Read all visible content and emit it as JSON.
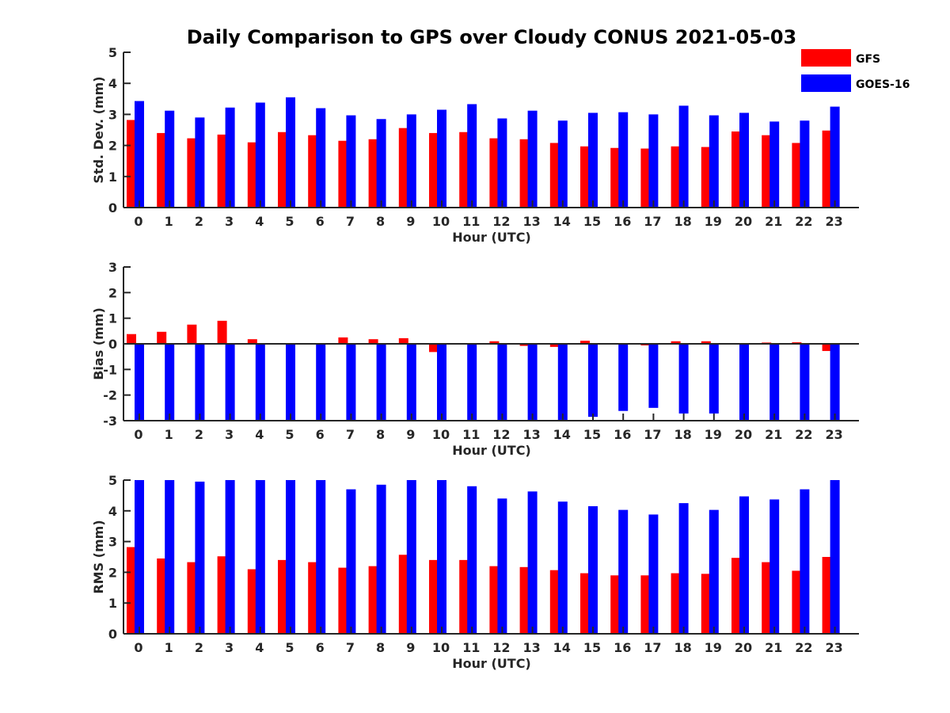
{
  "title": "Daily Comparison to GPS over Cloudy CONUS 2021-05-03",
  "colors": {
    "GFS": "#ff0000",
    "GOES-16": "#0000ff"
  },
  "legend": [
    {
      "label": "GFS",
      "color": "#ff0000"
    },
    {
      "label": "GOES-16",
      "color": "#0000ff"
    }
  ],
  "chart_data": [
    {
      "type": "bar",
      "xlabel": "Hour (UTC)",
      "ylabel": "Std. Dev. (mm)",
      "ylim": [
        0,
        5
      ],
      "yticks": [
        "0",
        "1",
        "2",
        "3",
        "4",
        "5"
      ],
      "categories": [
        "0",
        "1",
        "2",
        "3",
        "4",
        "5",
        "6",
        "7",
        "8",
        "9",
        "10",
        "11",
        "12",
        "13",
        "14",
        "15",
        "16",
        "17",
        "18",
        "19",
        "20",
        "21",
        "22",
        "23"
      ],
      "legend_position": "top-right",
      "series": [
        {
          "name": "GFS",
          "values": [
            2.82,
            2.4,
            2.23,
            2.35,
            2.1,
            2.43,
            2.33,
            2.15,
            2.2,
            2.56,
            2.4,
            2.43,
            2.23,
            2.2,
            2.08,
            1.97,
            1.92,
            1.9,
            1.97,
            1.95,
            2.45,
            2.33,
            2.08,
            2.48
          ]
        },
        {
          "name": "GOES-16",
          "values": [
            3.43,
            3.12,
            2.9,
            3.22,
            3.38,
            3.55,
            3.2,
            2.97,
            2.85,
            3.0,
            3.15,
            3.33,
            2.87,
            3.12,
            2.8,
            3.05,
            3.07,
            3.0,
            3.28,
            2.97,
            3.05,
            2.77,
            2.8,
            3.25
          ]
        }
      ]
    },
    {
      "type": "bar",
      "xlabel": "Hour (UTC)",
      "ylabel": "Bias (mm)",
      "ylim": [
        -3,
        3
      ],
      "yticks": [
        "-3",
        "-2",
        "-1",
        "0",
        "1",
        "2",
        "3"
      ],
      "categories": [
        "0",
        "1",
        "2",
        "3",
        "4",
        "5",
        "6",
        "7",
        "8",
        "9",
        "10",
        "11",
        "12",
        "13",
        "14",
        "15",
        "16",
        "17",
        "18",
        "19",
        "20",
        "21",
        "22",
        "23"
      ],
      "series": [
        {
          "name": "GFS",
          "values": [
            0.38,
            0.47,
            0.75,
            0.9,
            0.18,
            0.0,
            0.03,
            0.25,
            0.18,
            0.22,
            -0.32,
            0.02,
            0.1,
            -0.08,
            -0.12,
            0.12,
            0.02,
            -0.06,
            0.1,
            0.1,
            0.0,
            0.05,
            0.06,
            -0.28
          ]
        },
        {
          "name": "GOES-16",
          "values": [
            -3.0,
            -3.0,
            -3.0,
            -3.0,
            -3.0,
            -3.0,
            -3.0,
            -3.0,
            -3.0,
            -3.0,
            -3.0,
            -3.0,
            -3.0,
            -3.0,
            -3.0,
            -2.85,
            -2.62,
            -2.5,
            -2.72,
            -2.72,
            -3.0,
            -3.0,
            -3.0,
            -3.0
          ]
        }
      ]
    },
    {
      "type": "bar",
      "xlabel": "Hour (UTC)",
      "ylabel": "RMS (mm)",
      "ylim": [
        0,
        5
      ],
      "yticks": [
        "0",
        "1",
        "2",
        "3",
        "4",
        "5"
      ],
      "categories": [
        "0",
        "1",
        "2",
        "3",
        "4",
        "5",
        "6",
        "7",
        "8",
        "9",
        "10",
        "11",
        "12",
        "13",
        "14",
        "15",
        "16",
        "17",
        "18",
        "19",
        "20",
        "21",
        "22",
        "23"
      ],
      "series": [
        {
          "name": "GFS",
          "values": [
            2.82,
            2.45,
            2.33,
            2.52,
            2.1,
            2.4,
            2.33,
            2.15,
            2.2,
            2.57,
            2.4,
            2.4,
            2.2,
            2.17,
            2.07,
            1.97,
            1.9,
            1.9,
            1.97,
            1.95,
            2.47,
            2.33,
            2.05,
            2.5
          ]
        },
        {
          "name": "GOES-16",
          "values": [
            5.0,
            5.0,
            4.95,
            5.0,
            5.0,
            5.0,
            5.0,
            4.7,
            4.85,
            5.0,
            5.0,
            4.8,
            4.4,
            4.63,
            4.3,
            4.15,
            4.03,
            3.88,
            4.25,
            4.03,
            4.47,
            4.37,
            4.7,
            5.0
          ]
        }
      ]
    }
  ]
}
